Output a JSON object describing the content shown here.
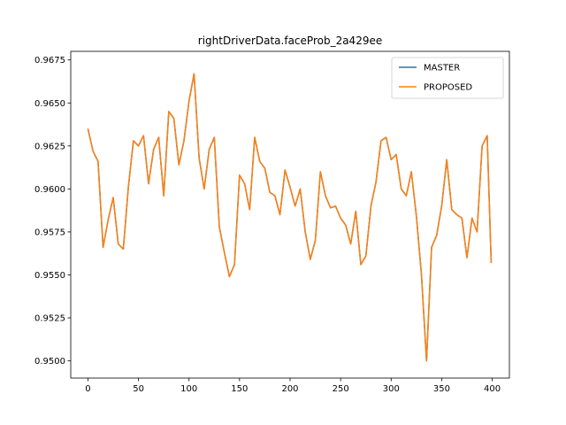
{
  "chart_data": {
    "type": "line",
    "title": "rightDriverData.faceProb_2a429ee",
    "xlabel": "",
    "ylabel": "",
    "xlim": [
      -17,
      417
    ],
    "ylim": [
      0.949,
      0.968
    ],
    "x_ticks": [
      0,
      50,
      100,
      150,
      200,
      250,
      300,
      350,
      400
    ],
    "x_tick_labels": [
      "0",
      "50",
      "100",
      "150",
      "200",
      "250",
      "300",
      "350",
      "400"
    ],
    "y_ticks": [
      0.95,
      0.9525,
      0.955,
      0.9575,
      0.96,
      0.9625,
      0.965,
      0.9675
    ],
    "y_tick_labels": [
      "0.9500",
      "0.9525",
      "0.9550",
      "0.9575",
      "0.9600",
      "0.9625",
      "0.9650",
      "0.9675"
    ],
    "grid": false,
    "legend_position": "top-right",
    "series_colors": {
      "MASTER": "#1f77b4",
      "PROPOSED": "#ff7f0e"
    },
    "x": [
      0,
      5,
      10,
      15,
      20,
      25,
      30,
      35,
      40,
      45,
      50,
      55,
      60,
      65,
      70,
      75,
      80,
      85,
      90,
      95,
      100,
      105,
      110,
      115,
      120,
      125,
      130,
      135,
      140,
      145,
      150,
      155,
      160,
      165,
      170,
      175,
      180,
      185,
      190,
      195,
      200,
      205,
      210,
      215,
      220,
      225,
      230,
      235,
      240,
      245,
      250,
      255,
      260,
      265,
      270,
      275,
      280,
      285,
      290,
      295,
      300,
      305,
      310,
      315,
      320,
      325,
      330,
      335,
      340,
      345,
      350,
      355,
      360,
      365,
      370,
      375,
      380,
      385,
      390,
      395,
      399
    ],
    "series": [
      {
        "name": "MASTER",
        "values": [
          0.9635,
          0.9622,
          0.9616,
          0.9566,
          0.9582,
          0.9595,
          0.9568,
          0.9565,
          0.9601,
          0.9628,
          0.9625,
          0.9631,
          0.9603,
          0.9623,
          0.963,
          0.9596,
          0.9645,
          0.9641,
          0.9614,
          0.9628,
          0.9651,
          0.9667,
          0.9618,
          0.96,
          0.9623,
          0.963,
          0.9578,
          0.9563,
          0.9549,
          0.9556,
          0.9608,
          0.9603,
          0.9588,
          0.963,
          0.9616,
          0.9612,
          0.9598,
          0.9596,
          0.9585,
          0.9611,
          0.9601,
          0.959,
          0.96,
          0.9575,
          0.9559,
          0.957,
          0.961,
          0.9596,
          0.9589,
          0.959,
          0.9583,
          0.9579,
          0.9568,
          0.9587,
          0.9556,
          0.9561,
          0.959,
          0.9604,
          0.9628,
          0.963,
          0.9617,
          0.962,
          0.96,
          0.9596,
          0.961,
          0.9584,
          0.955,
          0.95,
          0.9566,
          0.9573,
          0.959,
          0.9617,
          0.9588,
          0.9585,
          0.9583,
          0.956,
          0.9583,
          0.9575,
          0.9625,
          0.9631,
          0.9557
        ]
      },
      {
        "name": "PROPOSED",
        "values": [
          0.9635,
          0.9622,
          0.9616,
          0.9566,
          0.9582,
          0.9595,
          0.9568,
          0.9565,
          0.9601,
          0.9628,
          0.9625,
          0.9631,
          0.9603,
          0.9623,
          0.963,
          0.9596,
          0.9645,
          0.9641,
          0.9614,
          0.9628,
          0.9651,
          0.9667,
          0.9618,
          0.96,
          0.9623,
          0.963,
          0.9578,
          0.9563,
          0.9549,
          0.9556,
          0.9608,
          0.9603,
          0.9588,
          0.963,
          0.9616,
          0.9612,
          0.9598,
          0.9596,
          0.9585,
          0.9611,
          0.9601,
          0.959,
          0.96,
          0.9575,
          0.9559,
          0.957,
          0.961,
          0.9596,
          0.9589,
          0.959,
          0.9583,
          0.9579,
          0.9568,
          0.9587,
          0.9556,
          0.9561,
          0.959,
          0.9604,
          0.9628,
          0.963,
          0.9617,
          0.962,
          0.96,
          0.9596,
          0.961,
          0.9584,
          0.955,
          0.95,
          0.9566,
          0.9573,
          0.959,
          0.9617,
          0.9588,
          0.9585,
          0.9583,
          0.956,
          0.9583,
          0.9575,
          0.9625,
          0.9631,
          0.9557
        ]
      }
    ]
  }
}
